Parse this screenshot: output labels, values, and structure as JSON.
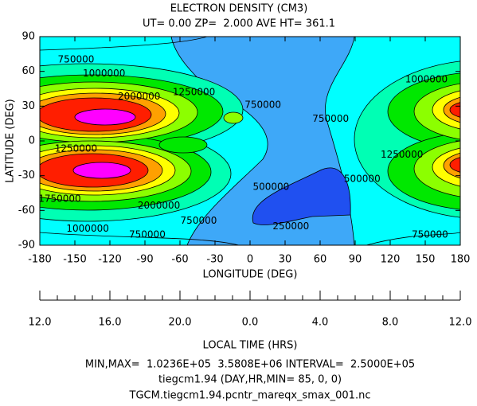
{
  "chart_data": {
    "type": "contour",
    "title": "ELECTRON DENSITY (CM3)",
    "subtitle": "UT= 0.00 ZP=  2.000 AVE HT= 361.1",
    "x_label": "LONGITUDE (DEG)",
    "y_label": "LATITUDE (DEG)",
    "xlim": [
      -180,
      180
    ],
    "ylim": [
      -90,
      90
    ],
    "xticks": [
      -180,
      -150,
      -120,
      -90,
      -60,
      -30,
      0,
      30,
      60,
      90,
      120,
      150,
      180
    ],
    "yticks": [
      -90,
      -60,
      -30,
      0,
      30,
      60,
      90
    ],
    "lt_label": "LOCAL TIME (HRS)",
    "lt_ticks": [
      {
        "value": 12,
        "label": "12.0"
      },
      {
        "value": 16,
        "label": "16.0"
      },
      {
        "value": 20,
        "label": "20.0"
      },
      {
        "value": 0,
        "label": "0.0"
      },
      {
        "value": 4,
        "label": "4.0"
      },
      {
        "value": 8,
        "label": "8.0"
      },
      {
        "value": 12,
        "label": "12.0"
      }
    ],
    "contour_labels": [
      {
        "value": 750000,
        "x": -149,
        "y": 70
      },
      {
        "value": 1000000,
        "x": -125,
        "y": 58
      },
      {
        "value": 1250000,
        "x": -48,
        "y": 42
      },
      {
        "value": 2000000,
        "x": -95,
        "y": 38
      },
      {
        "value": 750000,
        "x": 11,
        "y": 31
      },
      {
        "value": 1250000,
        "x": -149,
        "y": -7
      },
      {
        "value": 750000,
        "x": 69,
        "y": 19
      },
      {
        "value": 500000,
        "x": 96,
        "y": -33
      },
      {
        "value": 1000000,
        "x": 151,
        "y": 53
      },
      {
        "value": 1250000,
        "x": 130,
        "y": -12
      },
      {
        "value": 500000,
        "x": 18,
        "y": -40
      },
      {
        "value": 1750000,
        "x": -163,
        "y": -50
      },
      {
        "value": 2000000,
        "x": -78,
        "y": -56
      },
      {
        "value": 750000,
        "x": -44,
        "y": -69
      },
      {
        "value": 250000,
        "x": 35,
        "y": -74
      },
      {
        "value": 1000000,
        "x": -139,
        "y": -76
      },
      {
        "value": 750000,
        "x": -88,
        "y": -81
      },
      {
        "value": 750000,
        "x": 154,
        "y": -81
      }
    ],
    "footer": [
      "MIN,MAX=  1.0236E+05  3.5808E+06 INTERVAL=  2.5000E+05",
      "tiegcm1.94 (DAY,HR,MIN= 85, 0, 0)",
      "TGCM.tiegcm1.94.pcntr_mareqx_smax_001.nc"
    ]
  }
}
